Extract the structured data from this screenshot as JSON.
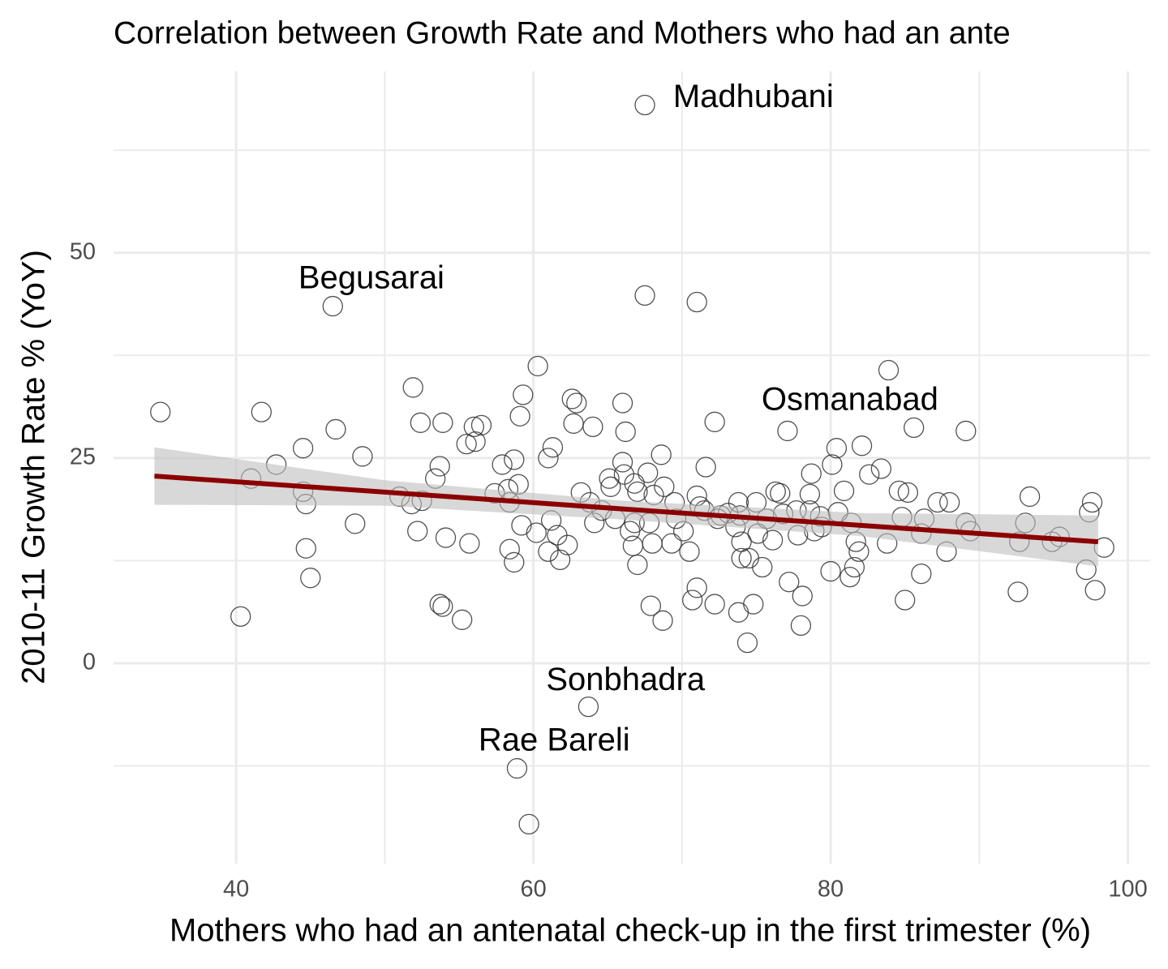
{
  "chart_data": {
    "type": "scatter",
    "title": "Correlation between Growth Rate and Mothers who had an ante",
    "x_label": "Mothers who had an antenatal check-up in the first trimester (%)",
    "y_label": "2010-11 Growth Rate % (YoY)",
    "xlim": [
      31.75,
      101.5
    ],
    "ylim": [
      -24.4,
      72.1
    ],
    "xticks": [
      40,
      60,
      80,
      100
    ],
    "yticks": [
      0,
      25,
      50
    ],
    "minor_xticks": [
      50,
      70,
      90
    ],
    "minor_yticks": [
      -12.5,
      12.5,
      37.5,
      62.5
    ],
    "grid": true,
    "point_color": "#333333",
    "x": [
      34.9,
      41.7,
      41.0,
      42.7,
      44.5,
      44.5,
      44.7,
      44.7,
      45.0,
      40.3,
      46.5,
      46.7,
      48.5,
      48.0,
      51.9,
      52.4,
      53.9,
      53.7,
      53.4,
      51.0,
      51.8,
      52.5,
      52.2,
      54.1,
      53.7,
      53.9,
      55.2,
      55.7,
      55.5,
      56.0,
      56.5,
      56.1,
      57.4,
      57.9,
      58.3,
      58.4,
      58.4,
      58.7,
      59.0,
      58.7,
      59.1,
      59.3,
      60.3,
      59.2,
      60.2,
      61.0,
      61.3,
      61.2,
      61.0,
      61.8,
      61.6,
      62.3,
      62.6,
      62.9,
      62.7,
      64.0,
      63.2,
      63.8,
      64.1,
      64.6,
      65.1,
      65.2,
      65.5,
      66.1,
      66.0,
      66.2,
      66.0,
      66.8,
      67.0,
      66.8,
      66.7,
      67.0,
      66.5,
      67.7,
      67.5,
      67.5,
      67.8,
      68.0,
      68.1,
      68.6,
      68.8,
      67.9,
      68.7,
      69.3,
      69.5,
      69.6,
      70.1,
      70.5,
      71.0,
      71.2,
      71.5,
      71.0,
      70.7,
      71.0,
      71.6,
      72.2,
      72.4,
      72.6,
      72.2,
      73.1,
      73.6,
      73.8,
      73.9,
      74.0,
      73.8,
      74.4,
      74.0,
      74.5,
      74.8,
      75.0,
      75.1,
      75.4,
      75.7,
      76.1,
      76.3,
      76.6,
      76.8,
      77.1,
      77.2,
      77.7,
      77.8,
      78.1,
      78.0,
      78.7,
      78.6,
      78.6,
      78.9,
      79.3,
      79.4,
      80.0,
      80.1,
      80.4,
      80.5,
      80.9,
      81.3,
      81.4,
      81.6,
      81.7,
      81.9,
      82.1,
      82.6,
      83.4,
      83.9,
      83.8,
      84.6,
      84.8,
      85.0,
      85.2,
      85.6,
      86.1,
      86.1,
      86.3,
      87.2,
      87.8,
      88.0,
      89.1,
      89.1,
      89.4,
      92.6,
      92.7,
      93.1,
      93.4,
      94.9,
      95.4,
      97.2,
      97.4,
      97.6,
      97.8,
      98.4,
      58.9,
      59.7,
      63.7
    ],
    "values": [
      30.6,
      30.6,
      22.5,
      24.2,
      26.2,
      20.9,
      19.4,
      14.0,
      10.4,
      5.7,
      43.5,
      28.5,
      25.2,
      17.0,
      33.6,
      29.3,
      29.3,
      24.0,
      22.5,
      20.3,
      19.4,
      19.8,
      16.1,
      15.3,
      7.2,
      6.9,
      5.3,
      14.6,
      26.7,
      28.8,
      29.0,
      27.0,
      20.7,
      24.2,
      21.2,
      19.6,
      13.9,
      12.3,
      21.8,
      24.8,
      30.1,
      32.7,
      36.2,
      16.8,
      15.9,
      25.0,
      26.3,
      17.4,
      13.6,
      12.6,
      15.6,
      14.4,
      32.2,
      31.7,
      29.2,
      28.8,
      20.8,
      19.6,
      17.1,
      18.6,
      22.5,
      21.5,
      17.6,
      23.0,
      31.7,
      28.2,
      24.5,
      21.9,
      20.9,
      17.1,
      14.3,
      12.0,
      16.1,
      23.2,
      44.8,
      68.0,
      17.1,
      14.6,
      20.5,
      25.4,
      21.5,
      7.0,
      5.2,
      14.6,
      19.6,
      17.6,
      16.1,
      13.6,
      20.4,
      19.1,
      18.6,
      44.0,
      7.7,
      9.2,
      23.9,
      29.4,
      17.6,
      18.0,
      7.2,
      18.3,
      16.6,
      19.6,
      18.0,
      14.8,
      6.2,
      2.5,
      12.8,
      12.8,
      7.2,
      19.6,
      15.8,
      11.7,
      17.6,
      15.0,
      20.9,
      20.7,
      18.2,
      28.3,
      9.9,
      18.6,
      15.6,
      8.2,
      4.6,
      23.1,
      20.6,
      18.6,
      16.1,
      17.9,
      16.6,
      11.2,
      24.2,
      26.2,
      18.4,
      21.0,
      10.5,
      17.1,
      11.7,
      14.8,
      13.6,
      26.5,
      23.0,
      23.7,
      35.7,
      14.6,
      21.0,
      17.8,
      7.7,
      20.8,
      28.7,
      10.9,
      15.8,
      17.6,
      19.6,
      13.6,
      19.6,
      28.3,
      17.1,
      16.1,
      8.7,
      14.8,
      17.1,
      20.3,
      14.8,
      15.4,
      11.4,
      18.4,
      19.6,
      8.9,
      14.1,
      -12.8,
      -19.6,
      -5.3
    ],
    "trend": {
      "color": "#8b0000",
      "band_color": "#bebebe",
      "x": [
        34.5,
        50,
        66,
        82,
        98
      ],
      "y": [
        22.8,
        20.85,
        18.8,
        16.8,
        14.8
      ],
      "upper": [
        26.3,
        22.3,
        19.8,
        18.3,
        18.0
      ],
      "lower": [
        19.3,
        19.2,
        17.5,
        15.5,
        11.8
      ]
    },
    "annotations": [
      {
        "text": "Madhubani",
        "x": 74.8,
        "y": 68.8
      },
      {
        "text": "Begusarai",
        "x": 49.1,
        "y": 46.7
      },
      {
        "text": "Osmanabad",
        "x": 81.3,
        "y": 31.9
      },
      {
        "text": "Sonbhadra",
        "x": 66.2,
        "y": -2.2
      },
      {
        "text": "Rae Bareli",
        "x": 61.4,
        "y": -9.6
      }
    ]
  }
}
